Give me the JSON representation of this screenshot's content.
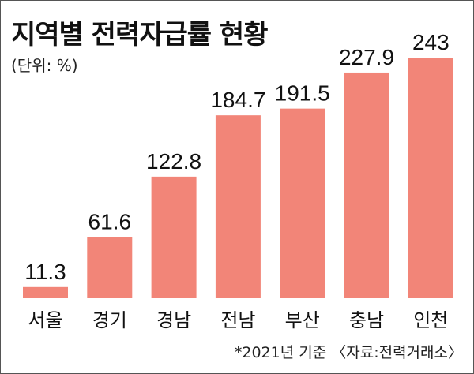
{
  "header": {
    "title": "지역별 전력자급률 현황",
    "unit": "(단위: %)"
  },
  "footnote": "*2021년 기준 〈자료:전력거래소〉",
  "colors": {
    "bar": "#f28578"
  },
  "chart_data": {
    "type": "bar",
    "title": "지역별 전력자급률 현황",
    "unit": "(단위: %)",
    "categories": [
      "서울",
      "경기",
      "경남",
      "전남",
      "부산",
      "충남",
      "인천"
    ],
    "values": [
      11.3,
      61.6,
      122.8,
      184.7,
      191.5,
      227.9,
      243
    ],
    "value_labels": [
      "11.3",
      "61.6",
      "122.8",
      "184.7",
      "191.5",
      "227.9",
      "243"
    ],
    "ylim": [
      0,
      243
    ],
    "grid": false,
    "legend": "none"
  }
}
